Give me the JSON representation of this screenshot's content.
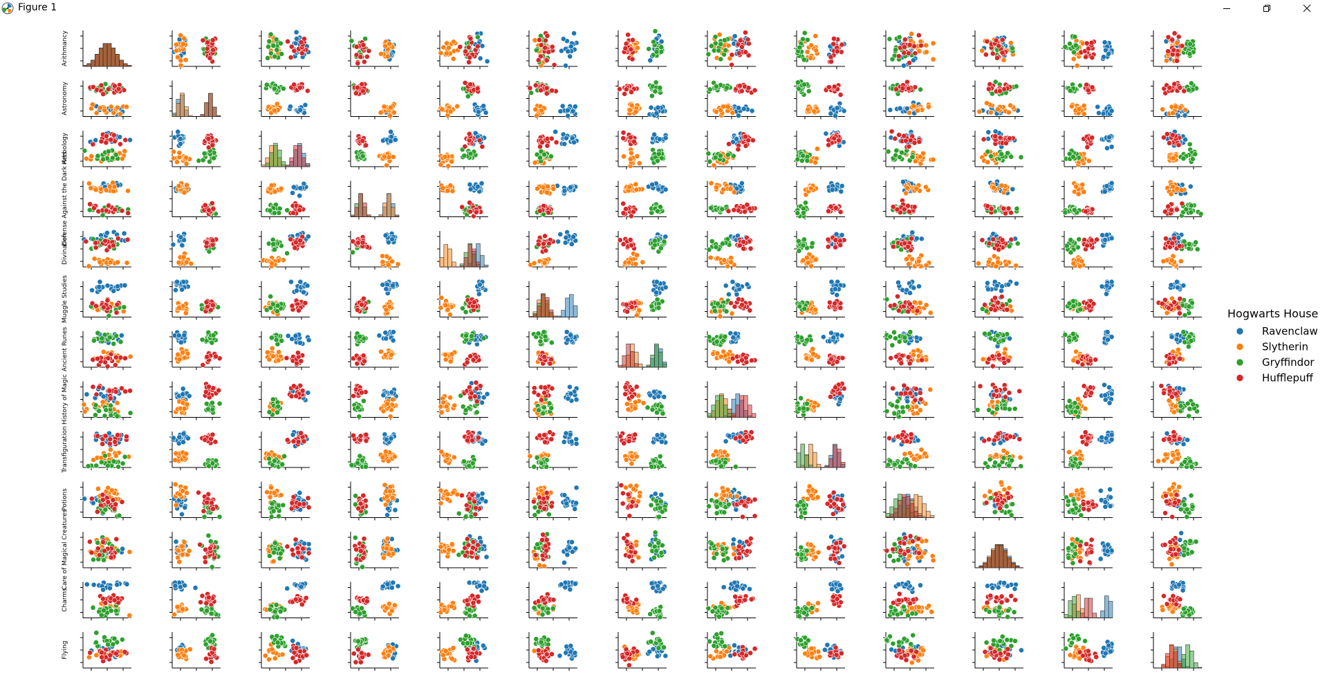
{
  "window": {
    "title": "Figure 1",
    "controls": [
      "minimize",
      "maximize",
      "close"
    ]
  },
  "colors": {
    "Ravenclaw": "#1f77b4",
    "Slytherin": "#ff7f0e",
    "Gryffindor": "#2ca02c",
    "Hufflepuff": "#d62728"
  },
  "chart_data": {
    "type": "scatter",
    "kind": "pairplot",
    "variables": [
      "Arithmancy",
      "Astronomy",
      "Herbology",
      "Defense Against the Dark Arts",
      "Divination",
      "Muggle Studies",
      "Ancient Runes",
      "History of Magic",
      "Transfiguration",
      "Potions",
      "Care of Magical Creatures",
      "Charms",
      "Flying"
    ],
    "diagonal": "histogram",
    "hue": "Hogwarts House",
    "legend": {
      "title": "Hogwarts House",
      "placement": "right",
      "entries": [
        "Ravenclaw",
        "Slytherin",
        "Gryffindor",
        "Hufflepuff"
      ]
    },
    "grid": false,
    "house_profiles": {
      "Ravenclaw": [
        0.5,
        0.18,
        0.78,
        0.8,
        0.78,
        0.85,
        0.82,
        0.62,
        0.8,
        0.45,
        0.52,
        0.9,
        0.5
      ],
      "Slytherin": [
        0.5,
        0.2,
        0.25,
        0.78,
        0.15,
        0.28,
        0.3,
        0.3,
        0.3,
        0.65,
        0.48,
        0.28,
        0.4
      ],
      "Gryffindor": [
        0.5,
        0.78,
        0.3,
        0.2,
        0.62,
        0.3,
        0.8,
        0.25,
        0.12,
        0.3,
        0.5,
        0.18,
        0.72
      ],
      "Hufflepuff": [
        0.5,
        0.78,
        0.75,
        0.22,
        0.65,
        0.32,
        0.22,
        0.75,
        0.82,
        0.4,
        0.5,
        0.5,
        0.38
      ]
    },
    "spread": [
      0.18,
      0.07,
      0.09,
      0.07,
      0.08,
      0.09,
      0.08,
      0.11,
      0.08,
      0.14,
      0.16,
      0.07,
      0.09
    ]
  }
}
